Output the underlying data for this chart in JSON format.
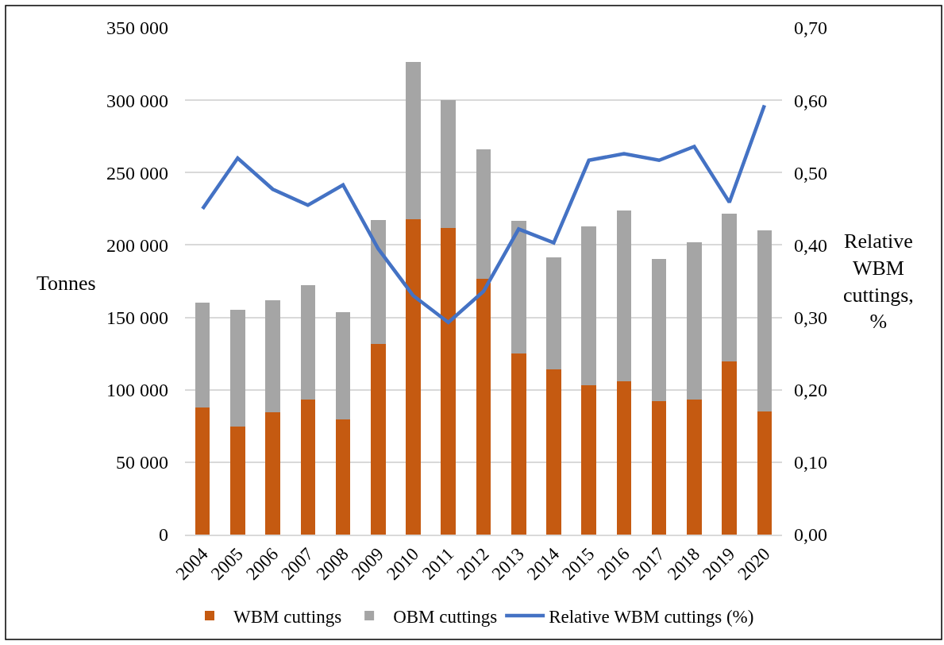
{
  "chart_data": {
    "type": "bar",
    "stacked": true,
    "categories": [
      "2004",
      "2005",
      "2006",
      "2007",
      "2008",
      "2009",
      "2010",
      "2011",
      "2012",
      "2013",
      "2014",
      "2015",
      "2016",
      "2017",
      "2018",
      "2019",
      "2020"
    ],
    "series": [
      {
        "name": "WBM cuttings",
        "color": "#c55a11",
        "values": [
          88000,
          74500,
          84500,
          93500,
          79500,
          131500,
          218000,
          211500,
          176500,
          125000,
          114000,
          103000,
          106000,
          92000,
          93500,
          119500,
          85000
        ]
      },
      {
        "name": "OBM cuttings",
        "color": "#a5a5a5",
        "values": [
          72000,
          80500,
          77500,
          78500,
          74000,
          85500,
          108500,
          88500,
          89500,
          91500,
          77500,
          110000,
          118000,
          98500,
          108500,
          102000,
          125000
        ]
      },
      {
        "name": "Relative WBM cuttings (%)",
        "type": "line",
        "axis": "y2",
        "color": "#4472c4",
        "values": [
          0.45,
          0.52,
          0.477,
          0.455,
          0.483,
          0.395,
          0.33,
          0.293,
          0.336,
          0.422,
          0.403,
          0.517,
          0.526,
          0.517,
          0.536,
          0.459,
          0.593
        ]
      }
    ],
    "ylim": [
      0,
      350000
    ],
    "yticks": [
      {
        "value": 0,
        "label": "0"
      },
      {
        "value": 50000,
        "label": "50 000"
      },
      {
        "value": 100000,
        "label": "100 000"
      },
      {
        "value": 150000,
        "label": "150 000"
      },
      {
        "value": 200000,
        "label": "200 000"
      },
      {
        "value": 250000,
        "label": "250 000"
      },
      {
        "value": 300000,
        "label": "300 000"
      },
      {
        "value": 350000,
        "label": "350 000"
      }
    ],
    "y2lim": [
      0,
      0.7
    ],
    "y2ticks": [
      {
        "value": 0,
        "label": "0,00"
      },
      {
        "value": 0.1,
        "label": "0,10"
      },
      {
        "value": 0.2,
        "label": "0,20"
      },
      {
        "value": 0.3,
        "label": "0,30"
      },
      {
        "value": 0.4,
        "label": "0,40"
      },
      {
        "value": 0.5,
        "label": "0,50"
      },
      {
        "value": 0.6,
        "label": "0,60"
      },
      {
        "value": 0.7,
        "label": "0,70"
      }
    ],
    "ylabel": "Tonnes",
    "y2label": "Relative WBM cuttings, %",
    "grid": "y",
    "legend": "bottom"
  }
}
